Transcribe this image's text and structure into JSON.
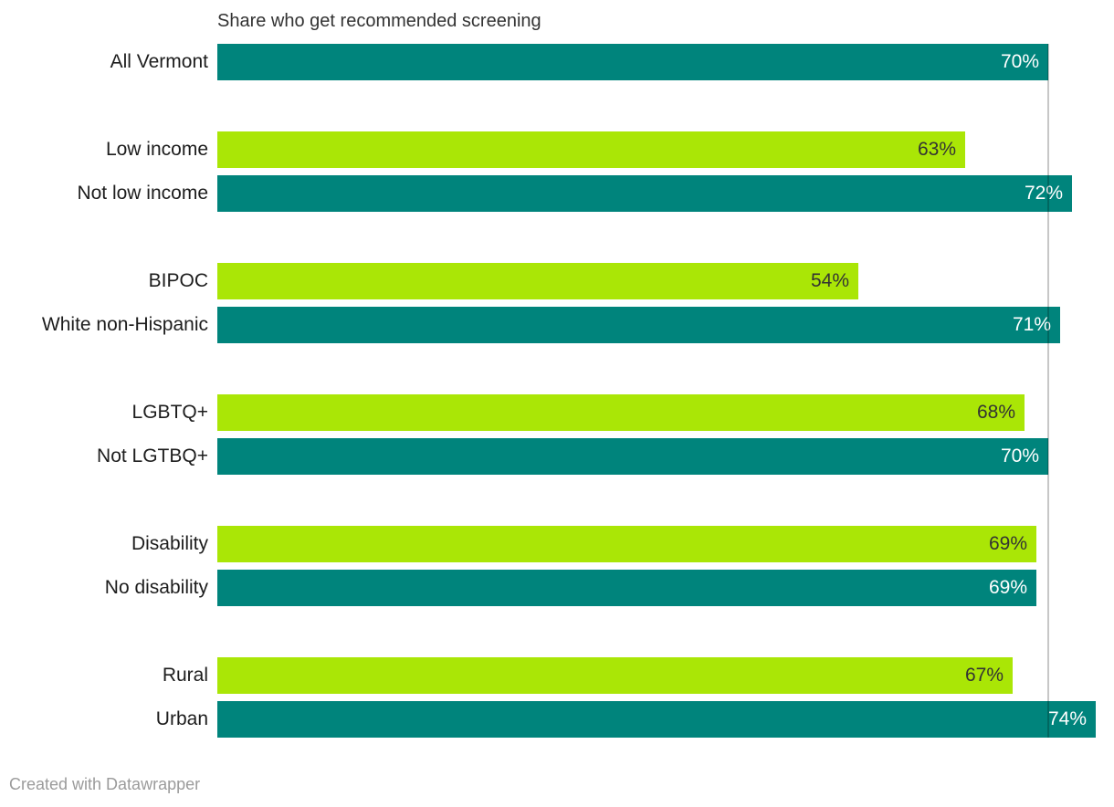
{
  "title": "Share who get recommended screening",
  "footer": "Created with Datawrapper",
  "colors": {
    "teal": "#00847c",
    "lime": "#aae606",
    "value_on_teal": "#ffffff",
    "value_on_lime": "#333333",
    "row_label": "#1d1d1d",
    "title": "#333333",
    "attribution": "#9b9b9b",
    "reference_line": "rgba(0,0,0,0.22)"
  },
  "chart_data": {
    "type": "bar",
    "orientation": "horizontal",
    "title": "Share who get recommended screening",
    "unit": "%",
    "xlim": [
      0,
      74
    ],
    "grid": false,
    "legend": false,
    "reference_line": {
      "value": 70
    },
    "groups": [
      {
        "bars": [
          {
            "label": "All Vermont",
            "value": 70,
            "value_label": "70%",
            "color": "teal"
          }
        ]
      },
      {
        "bars": [
          {
            "label": "Low income",
            "value": 63,
            "value_label": "63%",
            "color": "lime"
          },
          {
            "label": "Not low income",
            "value": 72,
            "value_label": "72%",
            "color": "teal"
          }
        ]
      },
      {
        "bars": [
          {
            "label": "BIPOC",
            "value": 54,
            "value_label": "54%",
            "color": "lime"
          },
          {
            "label": "White non-Hispanic",
            "value": 71,
            "value_label": "71%",
            "color": "teal"
          }
        ]
      },
      {
        "bars": [
          {
            "label": "LGBTQ+",
            "value": 68,
            "value_label": "68%",
            "color": "lime"
          },
          {
            "label": "Not LGTBQ+",
            "value": 70,
            "value_label": "70%",
            "color": "teal"
          }
        ]
      },
      {
        "bars": [
          {
            "label": "Disability",
            "value": 69,
            "value_label": "69%",
            "color": "lime"
          },
          {
            "label": "No disability",
            "value": 69,
            "value_label": "69%",
            "color": "teal"
          }
        ]
      },
      {
        "bars": [
          {
            "label": "Rural",
            "value": 67,
            "value_label": "67%",
            "color": "lime"
          },
          {
            "label": "Urban",
            "value": 74,
            "value_label": "74%",
            "color": "teal"
          }
        ]
      }
    ]
  }
}
